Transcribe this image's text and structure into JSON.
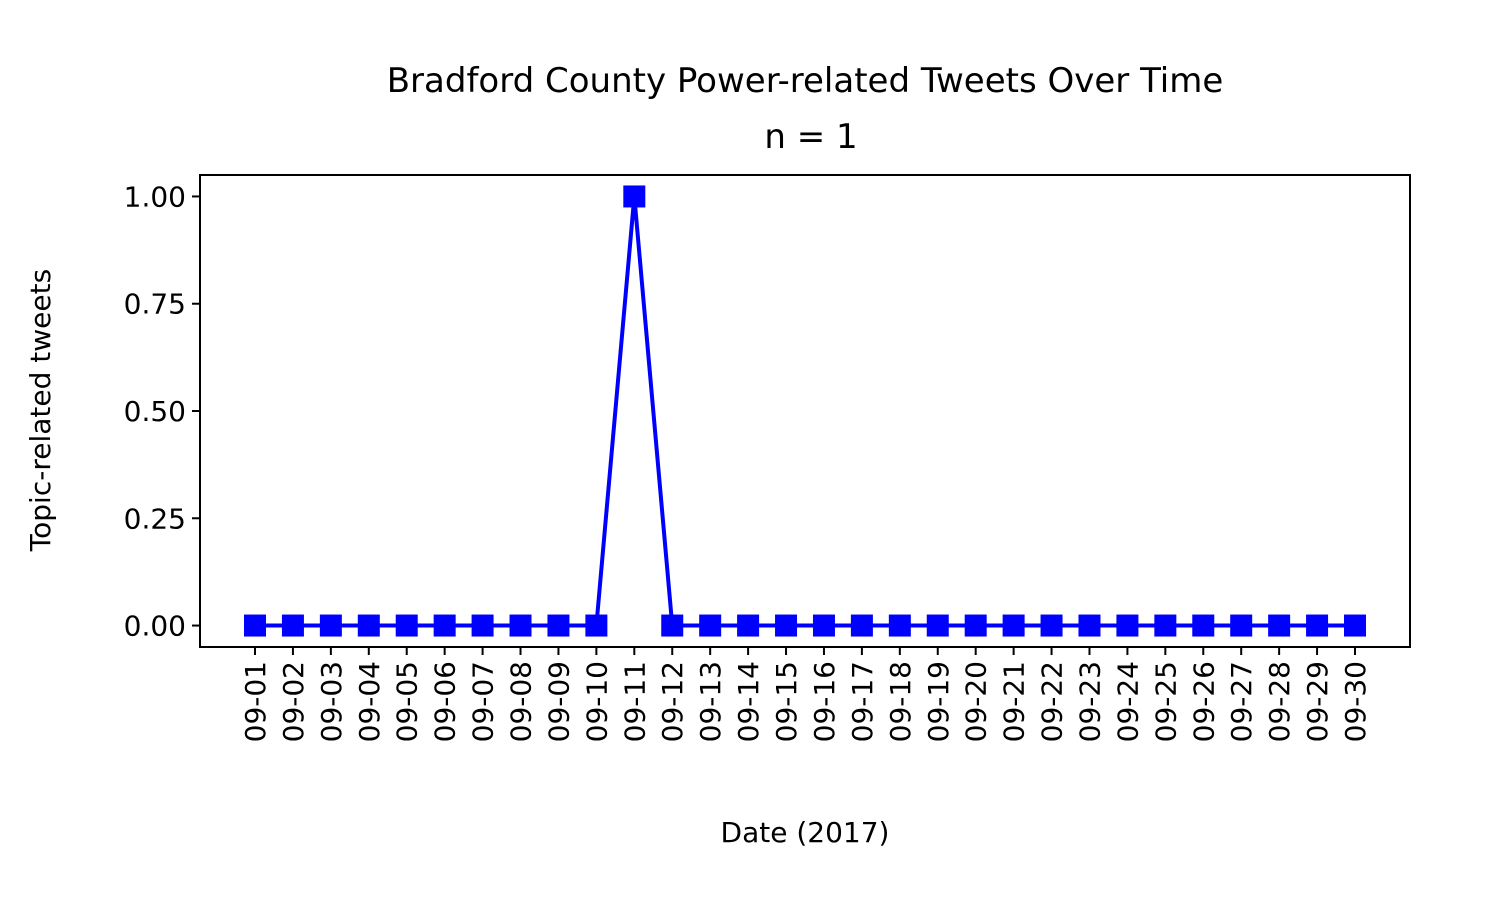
{
  "chart_data": {
    "type": "line",
    "title": "Bradford County Power-related Tweets Over Time",
    "subtitle": "n = 1",
    "xlabel": "Date (2017)",
    "ylabel": "Topic-related tweets",
    "ylim": [
      -0.05,
      1.05
    ],
    "yticks": [
      "0.00",
      "0.25",
      "0.50",
      "0.75",
      "1.00"
    ],
    "ytick_values": [
      0,
      0.25,
      0.5,
      0.75,
      1.0
    ],
    "grid": false,
    "categories": [
      "09-01",
      "09-02",
      "09-03",
      "09-04",
      "09-05",
      "09-06",
      "09-07",
      "09-08",
      "09-09",
      "09-10",
      "09-11",
      "09-12",
      "09-13",
      "09-14",
      "09-15",
      "09-16",
      "09-17",
      "09-18",
      "09-19",
      "09-20",
      "09-21",
      "09-22",
      "09-23",
      "09-24",
      "09-25",
      "09-26",
      "09-27",
      "09-28",
      "09-29",
      "09-30"
    ],
    "series": [
      {
        "color": "#0000ff",
        "marker": "square",
        "values": [
          0,
          0,
          0,
          0,
          0,
          0,
          0,
          0,
          0,
          0,
          1,
          0,
          0,
          0,
          0,
          0,
          0,
          0,
          0,
          0,
          0,
          0,
          0,
          0,
          0,
          0,
          0,
          0,
          0,
          0
        ]
      }
    ]
  }
}
